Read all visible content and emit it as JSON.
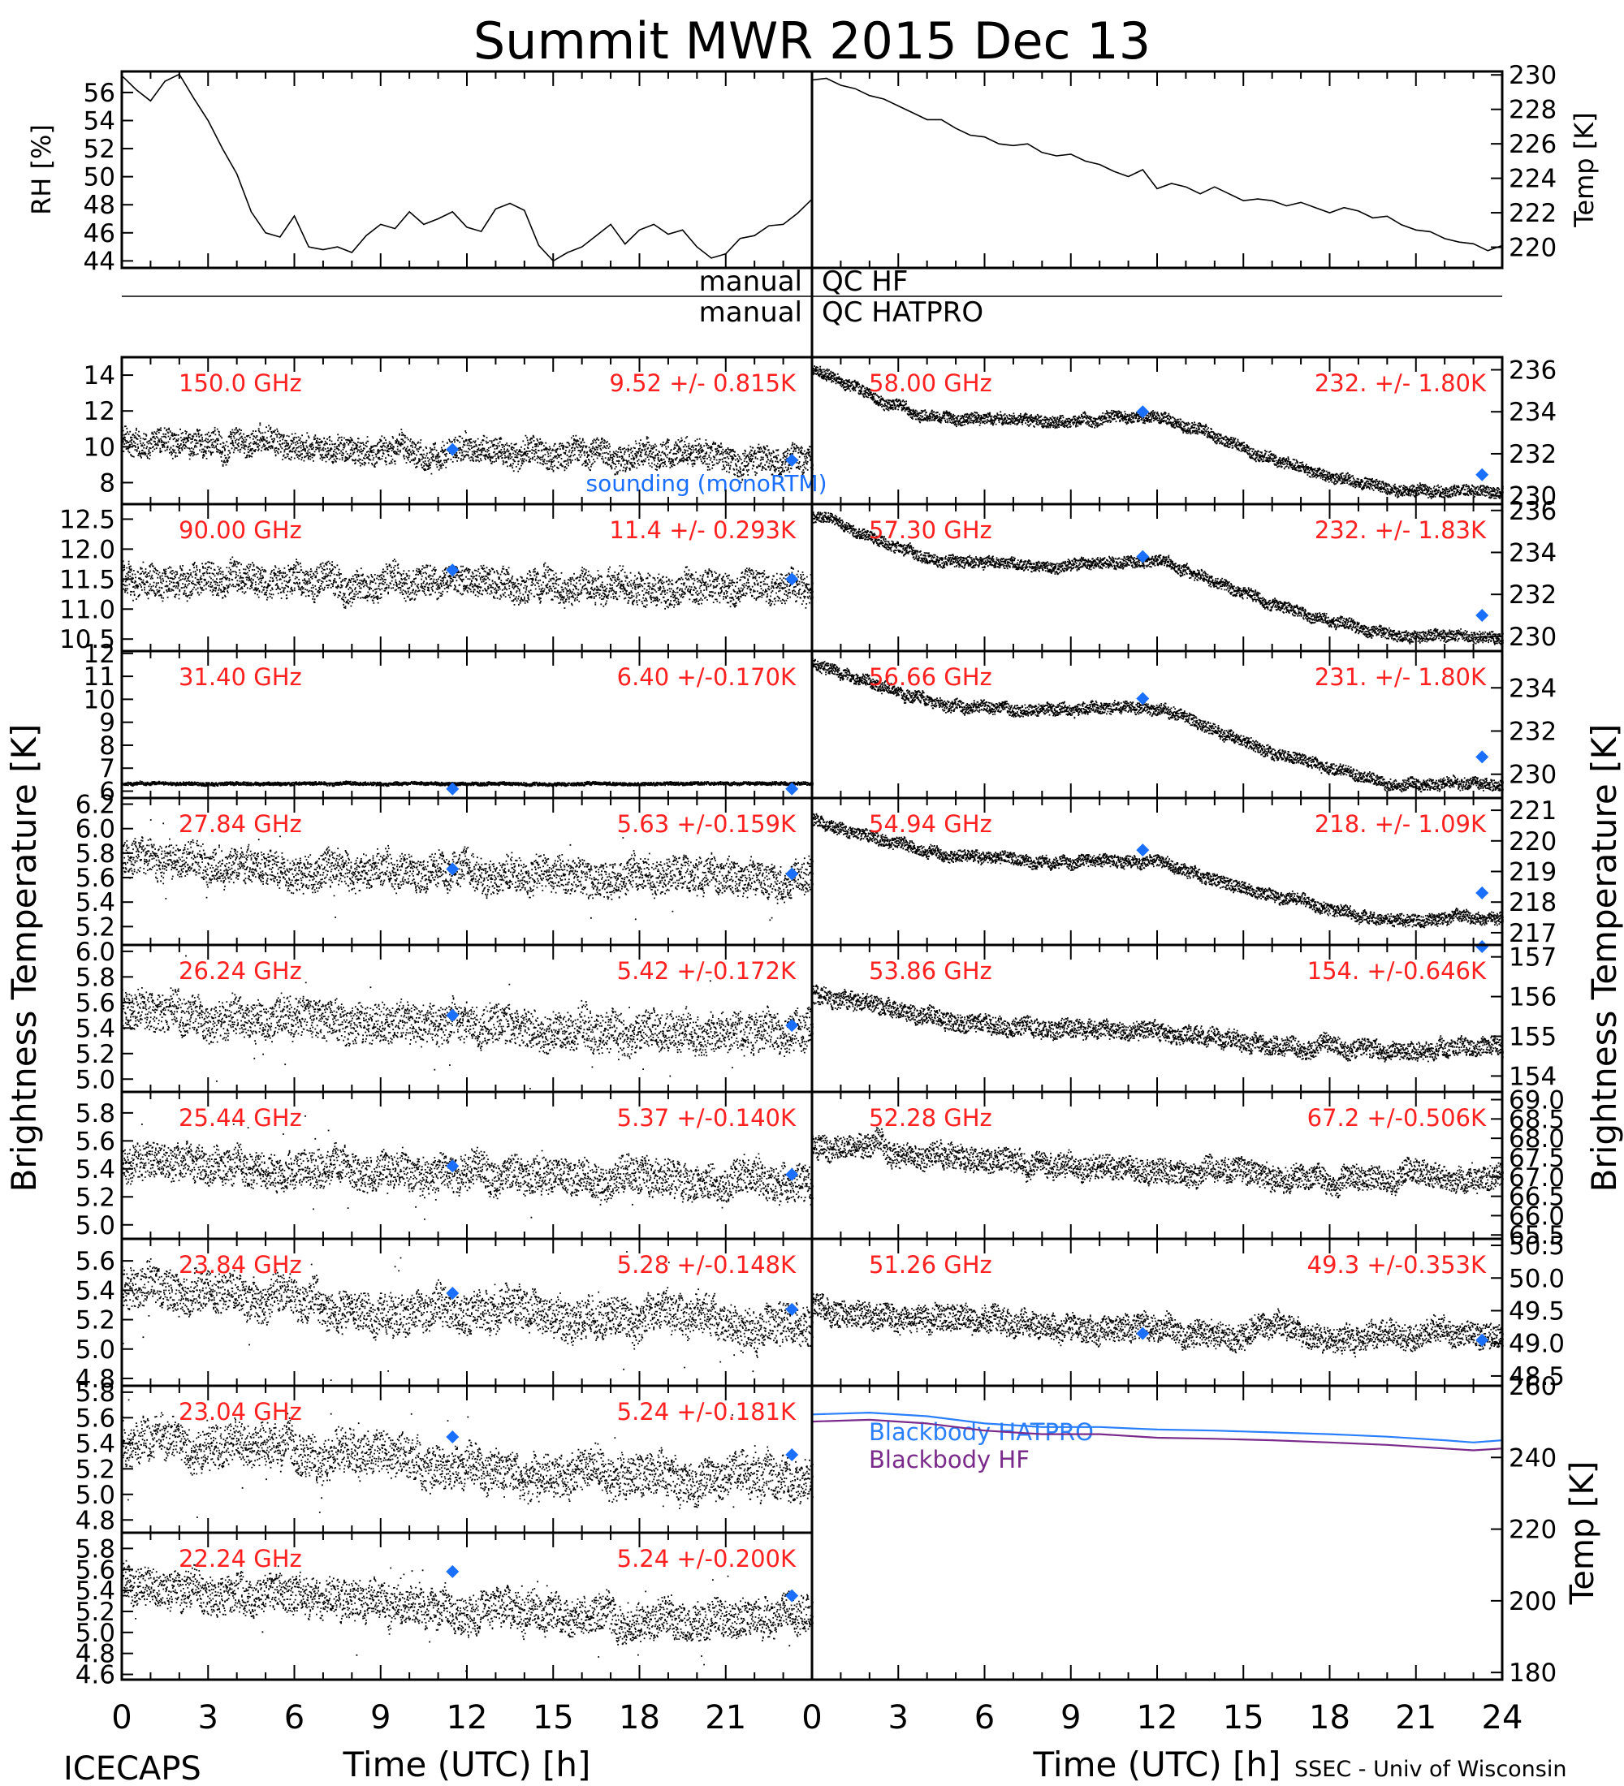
{
  "title": "Summit MWR 2015 Dec 13",
  "footer_left": "ICECAPS",
  "footer_right": "SSEC - Univ of Wisconsin",
  "xlabel": "Time (UTC) [h]",
  "x_ticks": [
    "0",
    "3",
    "6",
    "9",
    "12",
    "15",
    "18",
    "21",
    "24"
  ],
  "x_ticks_left_visible": [
    "0",
    "3",
    "6",
    "9",
    "12",
    "15",
    "18",
    "21"
  ],
  "left_ylabel": "Brightness Temperature [K]",
  "right_ylabel": "Brightness Temperature [K]",
  "qc": {
    "left_top": "manual",
    "right_top": "QC HF",
    "left_bottom": "manual",
    "right_bottom": "QC HATPRO"
  },
  "colors": {
    "data": "#000000",
    "label": "#ff2020",
    "sounding": "#1a6fff",
    "hatpro": "#2a7fff",
    "hf": "#7a2a8a"
  },
  "sounding_label": "sounding (monoRTM)",
  "chart_data": [
    {
      "id": "rh",
      "type": "line",
      "ylabel": "RH [%]",
      "ylim": [
        43.5,
        57.5
      ],
      "yticks": [
        "44",
        "46",
        "48",
        "50",
        "52",
        "54",
        "56"
      ],
      "x": [
        0,
        0.5,
        1,
        1.5,
        2,
        2.5,
        3,
        3.5,
        4,
        4.5,
        5,
        5.5,
        6,
        6.5,
        7,
        7.5,
        8,
        8.5,
        9,
        9.5,
        10,
        10.5,
        11,
        11.5,
        12,
        12.5,
        13,
        13.5,
        14,
        14.5,
        15,
        15.5,
        16,
        16.5,
        17,
        17.5,
        18,
        18.5,
        19,
        19.5,
        20,
        20.5,
        21,
        21.5,
        22,
        22.5,
        23,
        23.5,
        24
      ],
      "y": [
        57.2,
        56.2,
        55.4,
        56.8,
        57.3,
        55.6,
        54.0,
        52.0,
        50.2,
        47.5,
        46.0,
        45.7,
        47.2,
        45.0,
        44.8,
        45.0,
        44.6,
        45.8,
        46.6,
        46.3,
        47.5,
        46.6,
        47.0,
        47.5,
        46.4,
        46.1,
        47.7,
        48.1,
        47.6,
        45.1,
        44.0,
        44.6,
        45.0,
        45.8,
        46.6,
        45.2,
        46.2,
        46.6,
        45.9,
        46.2,
        45.0,
        44.2,
        44.5,
        45.6,
        45.8,
        46.5,
        46.6,
        47.4,
        48.4
      ]
    },
    {
      "id": "temp",
      "type": "line",
      "ylabel": "Temp [K]",
      "ylim": [
        218.8,
        230.2
      ],
      "yticks": [
        "220",
        "222",
        "224",
        "226",
        "228",
        "230"
      ],
      "x": [
        0,
        0.5,
        1,
        1.5,
        2,
        2.5,
        3,
        3.5,
        4,
        4.5,
        5,
        5.5,
        6,
        6.5,
        7,
        7.5,
        8,
        8.5,
        9,
        9.5,
        10,
        10.5,
        11,
        11.5,
        12,
        12.5,
        13,
        13.5,
        14,
        14.5,
        15,
        15.5,
        16,
        16.5,
        17,
        17.5,
        18,
        18.5,
        19,
        19.5,
        20,
        20.5,
        21,
        21.5,
        22,
        22.5,
        23,
        23.5,
        24
      ],
      "y": [
        229.7,
        229.8,
        229.4,
        229.2,
        228.8,
        228.6,
        228.2,
        227.8,
        227.4,
        227.4,
        226.9,
        226.5,
        226.4,
        226.0,
        225.9,
        226.0,
        225.5,
        225.3,
        225.4,
        225.0,
        224.8,
        224.4,
        224.1,
        224.5,
        223.4,
        223.7,
        223.5,
        223.1,
        223.5,
        223.1,
        222.7,
        222.8,
        222.7,
        222.4,
        222.6,
        222.3,
        222.0,
        222.3,
        222.1,
        221.7,
        221.8,
        221.3,
        221.0,
        220.9,
        220.5,
        220.3,
        220.2,
        219.8,
        220.1
      ]
    },
    {
      "id": "ch-150",
      "side": "left",
      "type": "scatter",
      "freq_label": "150.0 GHz",
      "stats_label": "9.52 +/- 0.815K",
      "ylim": [
        6.8,
        15.0
      ],
      "yticks": [
        "8",
        "10",
        "12",
        "14"
      ],
      "mean": [
        10.4,
        9.8,
        9.6,
        9.3
      ],
      "noise": 0.82,
      "spike": 0,
      "sounding": [
        {
          "x": 11.5,
          "y": 9.85
        },
        {
          "x": 23.3,
          "y": 9.25
        }
      ],
      "note": "sounding (monoRTM)"
    },
    {
      "id": "ch-90",
      "side": "left",
      "type": "scatter",
      "freq_label": "90.00 GHz",
      "stats_label": "11.4 +/- 0.293K",
      "ylim": [
        10.3,
        12.75
      ],
      "yticks": [
        "10.5",
        "11.0",
        "11.5",
        "12.0",
        "12.5"
      ],
      "mean": [
        11.55,
        11.45,
        11.4,
        11.35
      ],
      "noise": 0.29,
      "spike": 0,
      "sounding": [
        {
          "x": 11.5,
          "y": 11.65
        },
        {
          "x": 23.3,
          "y": 11.5
        }
      ]
    },
    {
      "id": "ch-31",
      "side": "left",
      "type": "scatter",
      "freq_label": "31.40 GHz",
      "stats_label": "6.40 +/-0.170K",
      "ylim": [
        5.7,
        12.1
      ],
      "yticks": [
        "6",
        "7",
        "8",
        "9",
        "10",
        "11",
        "12"
      ],
      "mean": [
        6.35,
        6.35,
        6.35,
        6.35
      ],
      "noise": 0.08,
      "spike": 0,
      "sounding": [
        {
          "x": 11.5,
          "y": 6.1
        },
        {
          "x": 23.3,
          "y": 6.1
        }
      ]
    },
    {
      "id": "ch-27",
      "side": "left",
      "type": "scatter",
      "freq_label": "27.84 GHz",
      "stats_label": "5.63 +/-0.159K",
      "ylim": [
        5.05,
        6.25
      ],
      "yticks": [
        "5.2",
        "5.4",
        "5.6",
        "5.8",
        "6.0",
        "6.2"
      ],
      "mean": [
        5.75,
        5.65,
        5.62,
        5.6
      ],
      "noise": 0.16,
      "spike": 0.3,
      "sounding": [
        {
          "x": 11.5,
          "y": 5.67
        },
        {
          "x": 23.3,
          "y": 5.63
        }
      ]
    },
    {
      "id": "ch-26",
      "side": "left",
      "type": "scatter",
      "freq_label": "26.24 GHz",
      "stats_label": "5.42 +/-0.172K",
      "ylim": [
        4.9,
        6.05
      ],
      "yticks": [
        "5.0",
        "5.2",
        "5.4",
        "5.6",
        "5.8",
        "6.0"
      ],
      "mean": [
        5.55,
        5.45,
        5.4,
        5.35
      ],
      "noise": 0.17,
      "spike": 0.3,
      "sounding": [
        {
          "x": 11.5,
          "y": 5.5
        },
        {
          "x": 23.3,
          "y": 5.42
        }
      ]
    },
    {
      "id": "ch-25",
      "side": "left",
      "type": "scatter",
      "freq_label": "25.44 GHz",
      "stats_label": "5.37 +/-0.140K",
      "ylim": [
        4.9,
        5.95
      ],
      "yticks": [
        "5.0",
        "5.2",
        "5.4",
        "5.6",
        "5.8"
      ],
      "mean": [
        5.45,
        5.38,
        5.35,
        5.3
      ],
      "noise": 0.14,
      "spike": 0.25,
      "sounding": [
        {
          "x": 11.5,
          "y": 5.42
        },
        {
          "x": 23.3,
          "y": 5.36
        }
      ]
    },
    {
      "id": "ch-23-84",
      "side": "left",
      "type": "scatter",
      "freq_label": "23.84 GHz",
      "stats_label": "5.28 +/-0.148K",
      "ylim": [
        4.75,
        5.75
      ],
      "yticks": [
        "4.8",
        "5.0",
        "5.2",
        "5.4",
        "5.6"
      ],
      "mean": [
        5.45,
        5.3,
        5.22,
        5.18
      ],
      "noise": 0.15,
      "spike": 0.25,
      "sounding": [
        {
          "x": 11.5,
          "y": 5.38
        },
        {
          "x": 23.3,
          "y": 5.27
        }
      ]
    },
    {
      "id": "ch-23-04",
      "side": "left",
      "type": "scatter",
      "freq_label": "23.04 GHz",
      "stats_label": "5.24 +/-0.181K",
      "ylim": [
        4.7,
        5.85
      ],
      "yticks": [
        "4.8",
        "5.0",
        "5.2",
        "5.4",
        "5.6",
        "5.8"
      ],
      "mean": [
        5.45,
        5.3,
        5.15,
        5.1
      ],
      "noise": 0.18,
      "spike": 0.3,
      "sounding": [
        {
          "x": 11.5,
          "y": 5.45
        },
        {
          "x": 23.3,
          "y": 5.31
        }
      ]
    },
    {
      "id": "ch-22-24",
      "side": "left",
      "type": "scatter",
      "freq_label": "22.24 GHz",
      "stats_label": "5.24 +/-0.200K",
      "ylim": [
        4.55,
        5.95
      ],
      "yticks": [
        "4.6",
        "4.8",
        "5.0",
        "5.2",
        "5.4",
        "5.6",
        "5.8"
      ],
      "mean": [
        5.45,
        5.3,
        5.15,
        5.1
      ],
      "noise": 0.2,
      "spike": 0.3,
      "sounding": [
        {
          "x": 11.5,
          "y": 5.58
        },
        {
          "x": 23.3,
          "y": 5.35
        }
      ]
    },
    {
      "id": "ch-58",
      "side": "right",
      "type": "scatter",
      "freq_label": "58.00 GHz",
      "stats_label": "232. +/- 1.80K",
      "ylim": [
        229.6,
        236.6
      ],
      "yticks": [
        "230",
        "232",
        "234",
        "236"
      ],
      "mean": [
        236.0,
        233.8,
        233.6,
        233.8,
        231.8,
        230.3,
        230.2
      ],
      "noise": 0.3,
      "spike": 0,
      "sounding": [
        {
          "x": 11.5,
          "y": 234.0
        },
        {
          "x": 23.3,
          "y": 231.0
        }
      ]
    },
    {
      "id": "ch-57",
      "side": "right",
      "type": "scatter",
      "freq_label": "57.30 GHz",
      "stats_label": "232. +/- 1.83K",
      "ylim": [
        229.3,
        236.3
      ],
      "yticks": [
        "230",
        "232",
        "234",
        "236"
      ],
      "mean": [
        235.8,
        233.7,
        233.4,
        233.6,
        231.6,
        230.1,
        230.0
      ],
      "noise": 0.3,
      "spike": 0,
      "sounding": [
        {
          "x": 11.5,
          "y": 233.8
        },
        {
          "x": 23.3,
          "y": 231.0
        }
      ]
    },
    {
      "id": "ch-56",
      "side": "right",
      "type": "scatter",
      "freq_label": "56.66 GHz",
      "stats_label": "231. +/- 1.80K",
      "ylim": [
        228.9,
        235.7
      ],
      "yticks": [
        "230",
        "232",
        "234"
      ],
      "mean": [
        235.2,
        233.3,
        233.0,
        233.1,
        231.0,
        229.6,
        229.6
      ],
      "noise": 0.3,
      "spike": 0,
      "sounding": [
        {
          "x": 11.5,
          "y": 233.5
        },
        {
          "x": 23.3,
          "y": 230.8
        }
      ]
    },
    {
      "id": "ch-54",
      "side": "right",
      "type": "scatter",
      "freq_label": "54.94 GHz",
      "stats_label": "218. +/- 1.09K",
      "ylim": [
        216.6,
        221.4
      ],
      "yticks": [
        "217",
        "218",
        "219",
        "220",
        "221"
      ],
      "mean": [
        220.7,
        219.7,
        219.3,
        219.3,
        218.2,
        217.4,
        217.5
      ],
      "noise": 0.22,
      "spike": 0,
      "sounding": [
        {
          "x": 11.5,
          "y": 219.7
        },
        {
          "x": 23.3,
          "y": 218.3
        }
      ]
    },
    {
      "id": "ch-53",
      "side": "right",
      "type": "scatter",
      "freq_label": "53.86 GHz",
      "stats_label": "154. +/-0.646K",
      "ylim": [
        153.6,
        157.3
      ],
      "yticks": [
        "154",
        "155",
        "156",
        "157"
      ],
      "mean": [
        156.1,
        155.5,
        155.2,
        155.1,
        154.8,
        154.6,
        154.8
      ],
      "noise": 0.25,
      "spike": 0,
      "sounding": [
        {
          "x": 23.3,
          "y": 157.4
        }
      ]
    },
    {
      "id": "ch-52",
      "side": "right",
      "type": "scatter",
      "freq_label": "52.28 GHz",
      "stats_label": "67.2 +/-0.506K",
      "ylim": [
        65.4,
        69.2
      ],
      "yticks": [
        "65.5",
        "66.0",
        "66.5",
        "67.0",
        "67.5",
        "68.0",
        "68.5",
        "69.0"
      ],
      "mean": [
        67.9,
        67.6,
        67.3,
        67.2,
        67.0,
        66.9,
        67.0
      ],
      "noise": 0.35,
      "spike": 0,
      "sounding": []
    },
    {
      "id": "ch-51",
      "side": "right",
      "type": "scatter",
      "freq_label": "51.26 GHz",
      "stats_label": "49.3 +/-0.353K",
      "ylim": [
        48.35,
        50.6
      ],
      "yticks": [
        "48.5",
        "49.0",
        "49.5",
        "50.0",
        "50.5"
      ],
      "mean": [
        49.6,
        49.4,
        49.3,
        49.2,
        49.2,
        49.15,
        49.2
      ],
      "noise": 0.22,
      "spike": 0,
      "sounding": [
        {
          "x": 11.5,
          "y": 49.15
        },
        {
          "x": 23.3,
          "y": 49.05
        }
      ]
    },
    {
      "id": "blackbody",
      "side": "right",
      "type": "line",
      "ylabel": "Temp [K]",
      "ylim": [
        178,
        260
      ],
      "yticks": [
        "180",
        "200",
        "220",
        "240",
        "260"
      ],
      "series": [
        {
          "name": "Blackbody HATPRO",
          "x": [
            0,
            2,
            4,
            6,
            8,
            10,
            12,
            14,
            16,
            18,
            20,
            22,
            23,
            24
          ],
          "y": [
            252.0,
            252.5,
            251.5,
            249.5,
            248.5,
            248.5,
            247.8,
            247.5,
            247.0,
            246.5,
            245.8,
            244.8,
            244.2,
            244.8
          ]
        },
        {
          "name": "Blackbody HF",
          "x": [
            0,
            2,
            4,
            6,
            8,
            10,
            12,
            14,
            16,
            18,
            20,
            22,
            23,
            24
          ],
          "y": [
            250.0,
            250.5,
            249.5,
            247.5,
            246.5,
            246.5,
            245.5,
            245.2,
            244.8,
            244.2,
            243.5,
            242.5,
            242.0,
            242.5
          ]
        }
      ]
    }
  ]
}
